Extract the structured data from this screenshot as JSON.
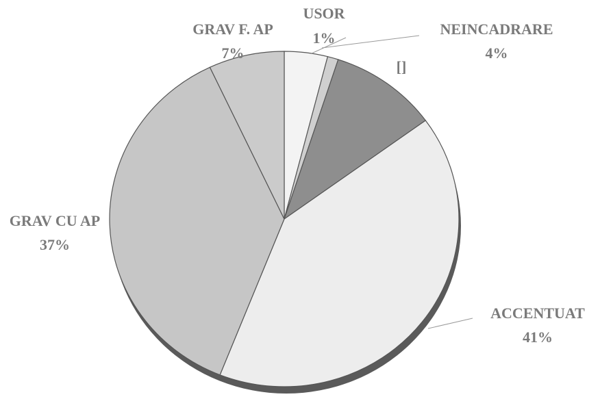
{
  "chart_data": {
    "type": "pie",
    "categories": [
      "NEINCADRARE",
      "USOR",
      "[]",
      "ACCENTUAT",
      "GRAV CU AP",
      "GRAV F. AP"
    ],
    "values": [
      4,
      1,
      10,
      41,
      37,
      7
    ],
    "value_labels": [
      "4%",
      "1%",
      null,
      "41%",
      "37%",
      "7%"
    ],
    "colors": [
      "#f3f3f3",
      "#cfcfcf",
      "#8e8e8e",
      "#ededed",
      "#c6c6c6",
      "#cbcbcb"
    ]
  }
}
